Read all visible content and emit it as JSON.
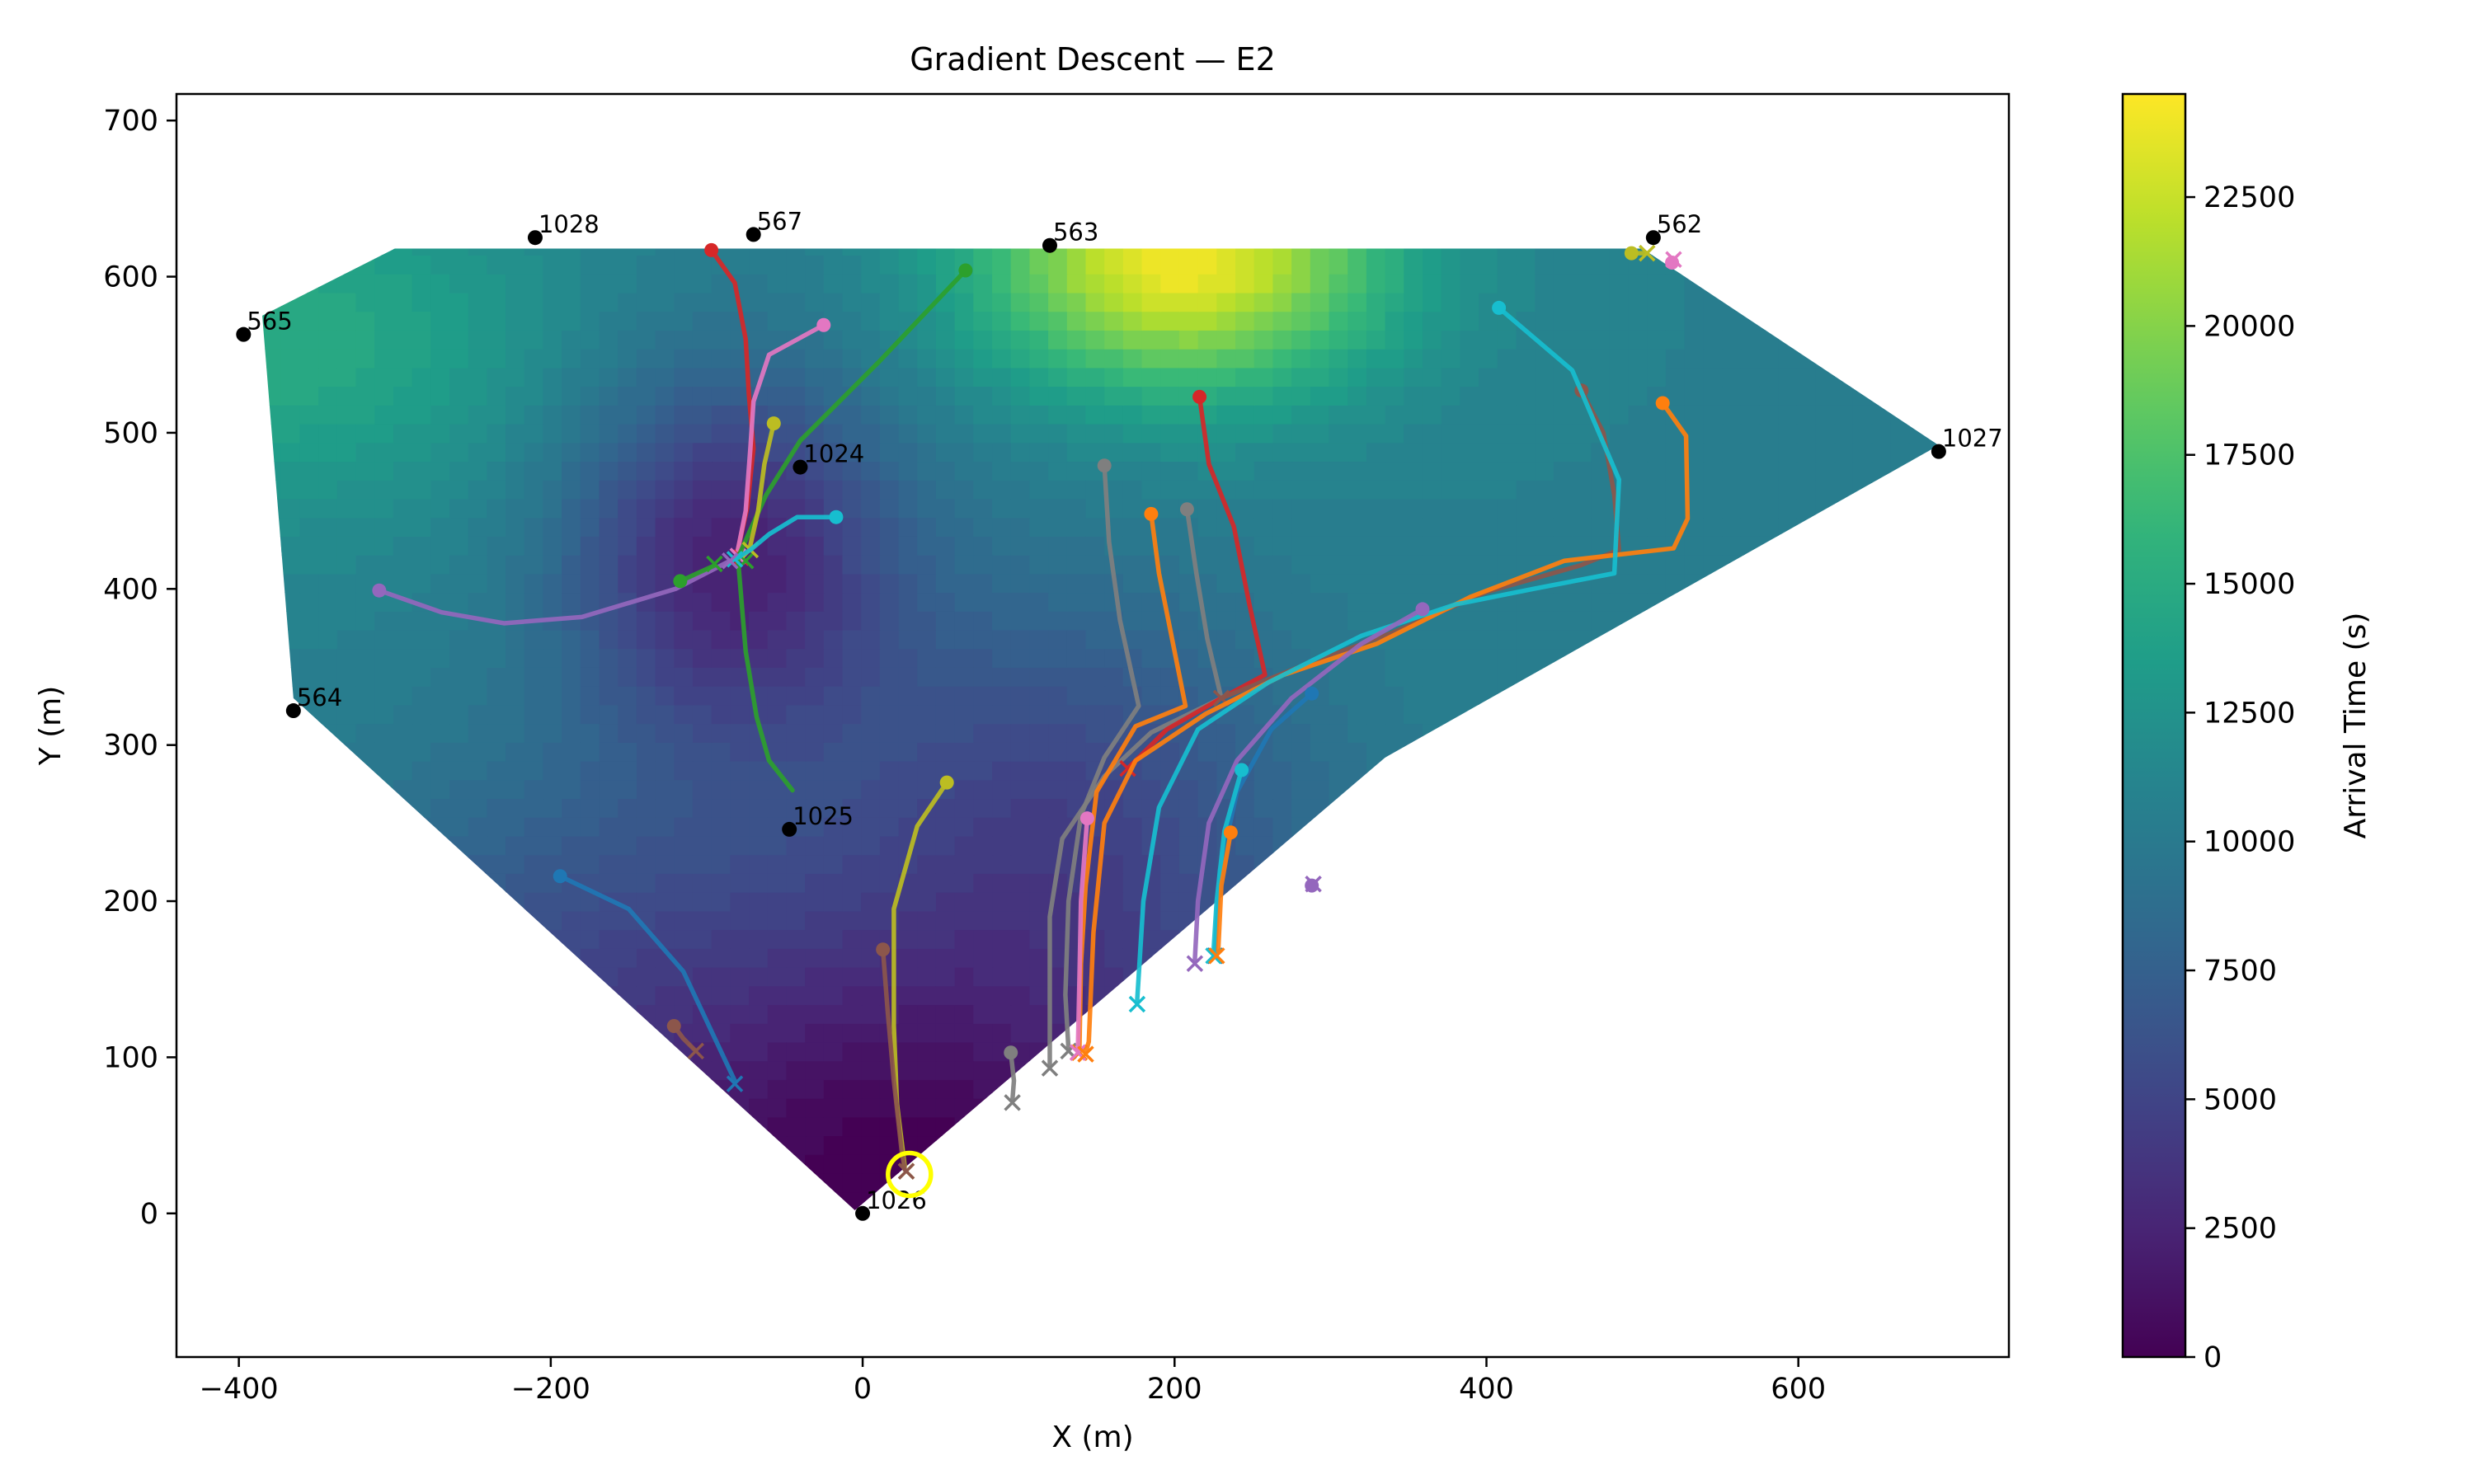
{
  "chart_data": {
    "type": "contour",
    "title": "Gradient Descent — E2",
    "xlabel": "X (m)",
    "ylabel": "Y (m)",
    "xlim": [
      -440,
      735
    ],
    "ylim": [
      -92,
      717
    ],
    "xticks": [
      -400,
      -200,
      0,
      200,
      400,
      600
    ],
    "xtick_labels": [
      "−400",
      "−200",
      "0",
      "200",
      "400",
      "600"
    ],
    "yticks": [
      0,
      100,
      200,
      300,
      400,
      500,
      600,
      700
    ],
    "ytick_labels": [
      "0",
      "100",
      "200",
      "300",
      "400",
      "500",
      "600",
      "700"
    ],
    "colorbar": {
      "label": "Arrival Time (s)",
      "min": 0,
      "max": 24500,
      "colormap": "viridis",
      "ticks": [
        0,
        2500,
        5000,
        7500,
        10000,
        12500,
        15000,
        17500,
        20000,
        22500
      ],
      "tick_labels": [
        "0",
        "2500",
        "5000",
        "7500",
        "10000",
        "12500",
        "15000",
        "17500",
        "20000",
        "22500"
      ]
    },
    "field": {
      "background": 11000,
      "bumps": [
        {
          "x": 205,
          "y": 612,
          "amp": 13500,
          "sx": 130,
          "sy": 85
        },
        {
          "x": -370,
          "y": 560,
          "amp": 4200,
          "sx": 170,
          "sy": 110
        }
      ],
      "dips": [
        {
          "x": 20,
          "y": 10,
          "amp": 10800,
          "sx": 260,
          "sy": 190
        },
        {
          "x": -85,
          "y": 420,
          "amp": 8200,
          "sx": 105,
          "sy": 120
        },
        {
          "x": 130,
          "y": 270,
          "amp": 4500,
          "sx": 150,
          "sy": 140
        },
        {
          "x": -200,
          "y": 180,
          "amp": 2500,
          "sx": 150,
          "sy": 120
        }
      ]
    },
    "domain_polygon": [
      [
        -385,
        575
      ],
      [
        -300,
        618
      ],
      [
        500,
        618
      ],
      [
        690,
        492
      ],
      [
        335,
        292
      ],
      [
        -5,
        2
      ],
      [
        -365,
        330
      ]
    ],
    "source": {
      "x": 30,
      "y": 25,
      "color": "#ffff00"
    },
    "stations": [
      {
        "x": -210,
        "y": 625,
        "label": "1028"
      },
      {
        "x": -70,
        "y": 627,
        "label": "567"
      },
      {
        "x": 120,
        "y": 620,
        "label": "563"
      },
      {
        "x": 507,
        "y": 625,
        "label": "562"
      },
      {
        "x": -397,
        "y": 563,
        "label": "565"
      },
      {
        "x": 690,
        "y": 488,
        "label": "1027"
      },
      {
        "x": -40,
        "y": 478,
        "label": "1024"
      },
      {
        "x": -365,
        "y": 322,
        "label": "564"
      },
      {
        "x": -47,
        "y": 246,
        "label": "1025"
      },
      {
        "x": 0,
        "y": 0,
        "label": "1026"
      }
    ],
    "paths": [
      {
        "color": "#d62728",
        "points": [
          [
            -97,
            617
          ],
          [
            -82,
            596
          ],
          [
            -75,
            560
          ],
          [
            -73,
            525
          ],
          [
            -70,
            490
          ],
          [
            -74,
            452
          ],
          [
            -80,
            425
          ]
        ],
        "end": [
          -78,
          420
        ]
      },
      {
        "color": "#e377c2",
        "points": [
          [
            -25,
            569
          ],
          [
            -60,
            550
          ],
          [
            -70,
            520
          ],
          [
            -72,
            490
          ],
          [
            -75,
            450
          ],
          [
            -80,
            425
          ]
        ],
        "end": [
          -80,
          421
        ]
      },
      {
        "color": "#2ca02c",
        "points": [
          [
            66,
            604
          ],
          [
            10,
            545
          ],
          [
            -40,
            495
          ],
          [
            -62,
            460
          ],
          [
            -80,
            420
          ],
          [
            -75,
            360
          ],
          [
            -68,
            318
          ],
          [
            -60,
            290
          ],
          [
            -45,
            271
          ]
        ],
        "end": [
          -75,
          418
        ]
      },
      {
        "color": "#bcbd22",
        "points": [
          [
            -57,
            506
          ],
          [
            -63,
            480
          ],
          [
            -67,
            450
          ],
          [
            -72,
            428
          ]
        ],
        "end": [
          -72,
          425
        ]
      },
      {
        "color": "#17becf",
        "points": [
          [
            -17,
            446
          ],
          [
            -42,
            446
          ],
          [
            -60,
            435
          ],
          [
            -72,
            425
          ],
          [
            -80,
            420
          ]
        ],
        "end": [
          -82,
          419
        ]
      },
      {
        "color": "#9467bd",
        "points": [
          [
            -310,
            399
          ],
          [
            -270,
            385
          ],
          [
            -230,
            378
          ],
          [
            -180,
            382
          ],
          [
            -120,
            400
          ],
          [
            -85,
            418
          ]
        ],
        "end": [
          -85,
          418
        ]
      },
      {
        "color": "#2ca02c",
        "points": [
          [
            -117,
            405
          ],
          [
            -95,
            415
          ]
        ],
        "end": [
          -95,
          416
        ]
      },
      {
        "color": "#1f77b4",
        "points": [
          [
            -194,
            216
          ],
          [
            -150,
            195
          ],
          [
            -115,
            155
          ],
          [
            -82,
            85
          ]
        ],
        "end": [
          -82,
          83
        ]
      },
      {
        "color": "#8c564b",
        "points": [
          [
            -121,
            120
          ],
          [
            -115,
            112
          ],
          [
            -107,
            104
          ]
        ],
        "end": [
          -107,
          104
        ]
      },
      {
        "color": "#bcbd22",
        "points": [
          [
            54,
            276
          ],
          [
            35,
            248
          ],
          [
            20,
            195
          ],
          [
            20,
            120
          ],
          [
            22,
            70
          ],
          [
            27,
            30
          ]
        ],
        "end": [
          28,
          27
        ]
      },
      {
        "color": "#8c564b",
        "points": [
          [
            13,
            169
          ],
          [
            16,
            130
          ],
          [
            20,
            85
          ],
          [
            25,
            40
          ],
          [
            27,
            28
          ]
        ],
        "end": [
          28,
          27
        ]
      },
      {
        "color": "#7f7f7f",
        "points": [
          [
            155,
            479
          ],
          [
            158,
            430
          ],
          [
            165,
            380
          ],
          [
            177,
            325
          ],
          [
            155,
            292
          ],
          [
            140,
            255
          ],
          [
            132,
            200
          ],
          [
            130,
            140
          ],
          [
            132,
            105
          ]
        ],
        "end": [
          132,
          104
        ]
      },
      {
        "color": "#7f7f7f",
        "points": [
          [
            208,
            451
          ],
          [
            214,
            410
          ],
          [
            221,
            368
          ],
          [
            230,
            330
          ],
          [
            185,
            308
          ],
          [
            155,
            280
          ],
          [
            128,
            240
          ],
          [
            120,
            190
          ],
          [
            120,
            130
          ],
          [
            120,
            95
          ]
        ],
        "end": [
          120,
          93
        ]
      },
      {
        "color": "#ff7f0e",
        "points": [
          [
            185,
            448
          ],
          [
            190,
            410
          ],
          [
            198,
            370
          ],
          [
            207,
            325
          ],
          [
            175,
            312
          ],
          [
            150,
            270
          ],
          [
            143,
            210
          ],
          [
            140,
            160
          ],
          [
            139,
            105
          ]
        ],
        "end": [
          139,
          103
        ]
      },
      {
        "color": "#e377c2",
        "points": [
          [
            144,
            253
          ],
          [
            140,
            200
          ],
          [
            139,
            150
          ],
          [
            138,
            105
          ]
        ],
        "end": [
          138,
          103
        ]
      },
      {
        "color": "#7f7f7f",
        "points": [
          [
            95,
            103
          ],
          [
            97,
            85
          ],
          [
            96,
            72
          ]
        ],
        "end": [
          96,
          71
        ]
      },
      {
        "color": "#d62728",
        "points": [
          [
            216,
            523
          ],
          [
            222,
            480
          ],
          [
            238,
            440
          ],
          [
            248,
            390
          ],
          [
            258,
            345
          ],
          [
            230,
            330
          ],
          [
            195,
            310
          ],
          [
            170,
            285
          ]
        ],
        "end": [
          170,
          285
        ]
      },
      {
        "color": "#8c564b",
        "points": [
          [
            461,
            527
          ],
          [
            475,
            500
          ],
          [
            482,
            460
          ],
          [
            485,
            425
          ],
          [
            460,
            415
          ],
          [
            400,
            398
          ],
          [
            340,
            372
          ],
          [
            280,
            350
          ],
          [
            230,
            330
          ]
        ],
        "end": [
          230,
          330
        ]
      },
      {
        "color": "#ff7f0e",
        "points": [
          [
            513,
            519
          ],
          [
            528,
            498
          ],
          [
            529,
            445
          ],
          [
            520,
            426
          ],
          [
            450,
            418
          ],
          [
            390,
            395
          ],
          [
            330,
            365
          ],
          [
            270,
            345
          ],
          [
            220,
            320
          ],
          [
            175,
            290
          ],
          [
            155,
            250
          ],
          [
            148,
            180
          ],
          [
            145,
            110
          ],
          [
            143,
            103
          ]
        ],
        "end": [
          143,
          102
        ]
      },
      {
        "color": "#17becf",
        "points": [
          [
            408,
            580
          ],
          [
            455,
            540
          ],
          [
            485,
            470
          ],
          [
            482,
            410
          ],
          [
            430,
            400
          ],
          [
            380,
            390
          ],
          [
            320,
            370
          ],
          [
            260,
            340
          ],
          [
            215,
            310
          ],
          [
            190,
            260
          ],
          [
            180,
            200
          ],
          [
            176,
            136
          ]
        ],
        "end": [
          176,
          134
        ]
      },
      {
        "color": "#9467bd",
        "points": [
          [
            359,
            387
          ],
          [
            320,
            365
          ],
          [
            275,
            330
          ],
          [
            240,
            290
          ],
          [
            222,
            250
          ],
          [
            215,
            200
          ],
          [
            213,
            162
          ]
        ],
        "end": [
          213,
          160
        ]
      },
      {
        "color": "#1f77b4",
        "points": [
          [
            288,
            333
          ],
          [
            262,
            310
          ],
          [
            240,
            270
          ],
          [
            229,
            220
          ],
          [
            226,
            168
          ]
        ],
        "end": [
          226,
          165
        ]
      },
      {
        "color": "#17becf",
        "points": [
          [
            243,
            284
          ],
          [
            232,
            245
          ],
          [
            227,
            200
          ],
          [
            225,
            168
          ]
        ],
        "end": [
          225,
          165
        ]
      },
      {
        "color": "#ff7f0e",
        "points": [
          [
            236,
            244
          ],
          [
            230,
            210
          ],
          [
            228,
            168
          ]
        ],
        "end": [
          227,
          165
        ]
      },
      {
        "color": "#bcbd22",
        "points": [
          [
            493,
            615
          ],
          [
            503,
            615
          ]
        ],
        "end": [
          503,
          615
        ]
      },
      {
        "color": "#e377c2",
        "points": [
          [
            519,
            609
          ],
          [
            520,
            611
          ]
        ],
        "end": [
          520,
          611
        ]
      },
      {
        "color": "#9467bd",
        "points": [
          [
            288,
            210
          ],
          [
            289,
            211
          ]
        ],
        "end": [
          289,
          211
        ]
      }
    ]
  }
}
